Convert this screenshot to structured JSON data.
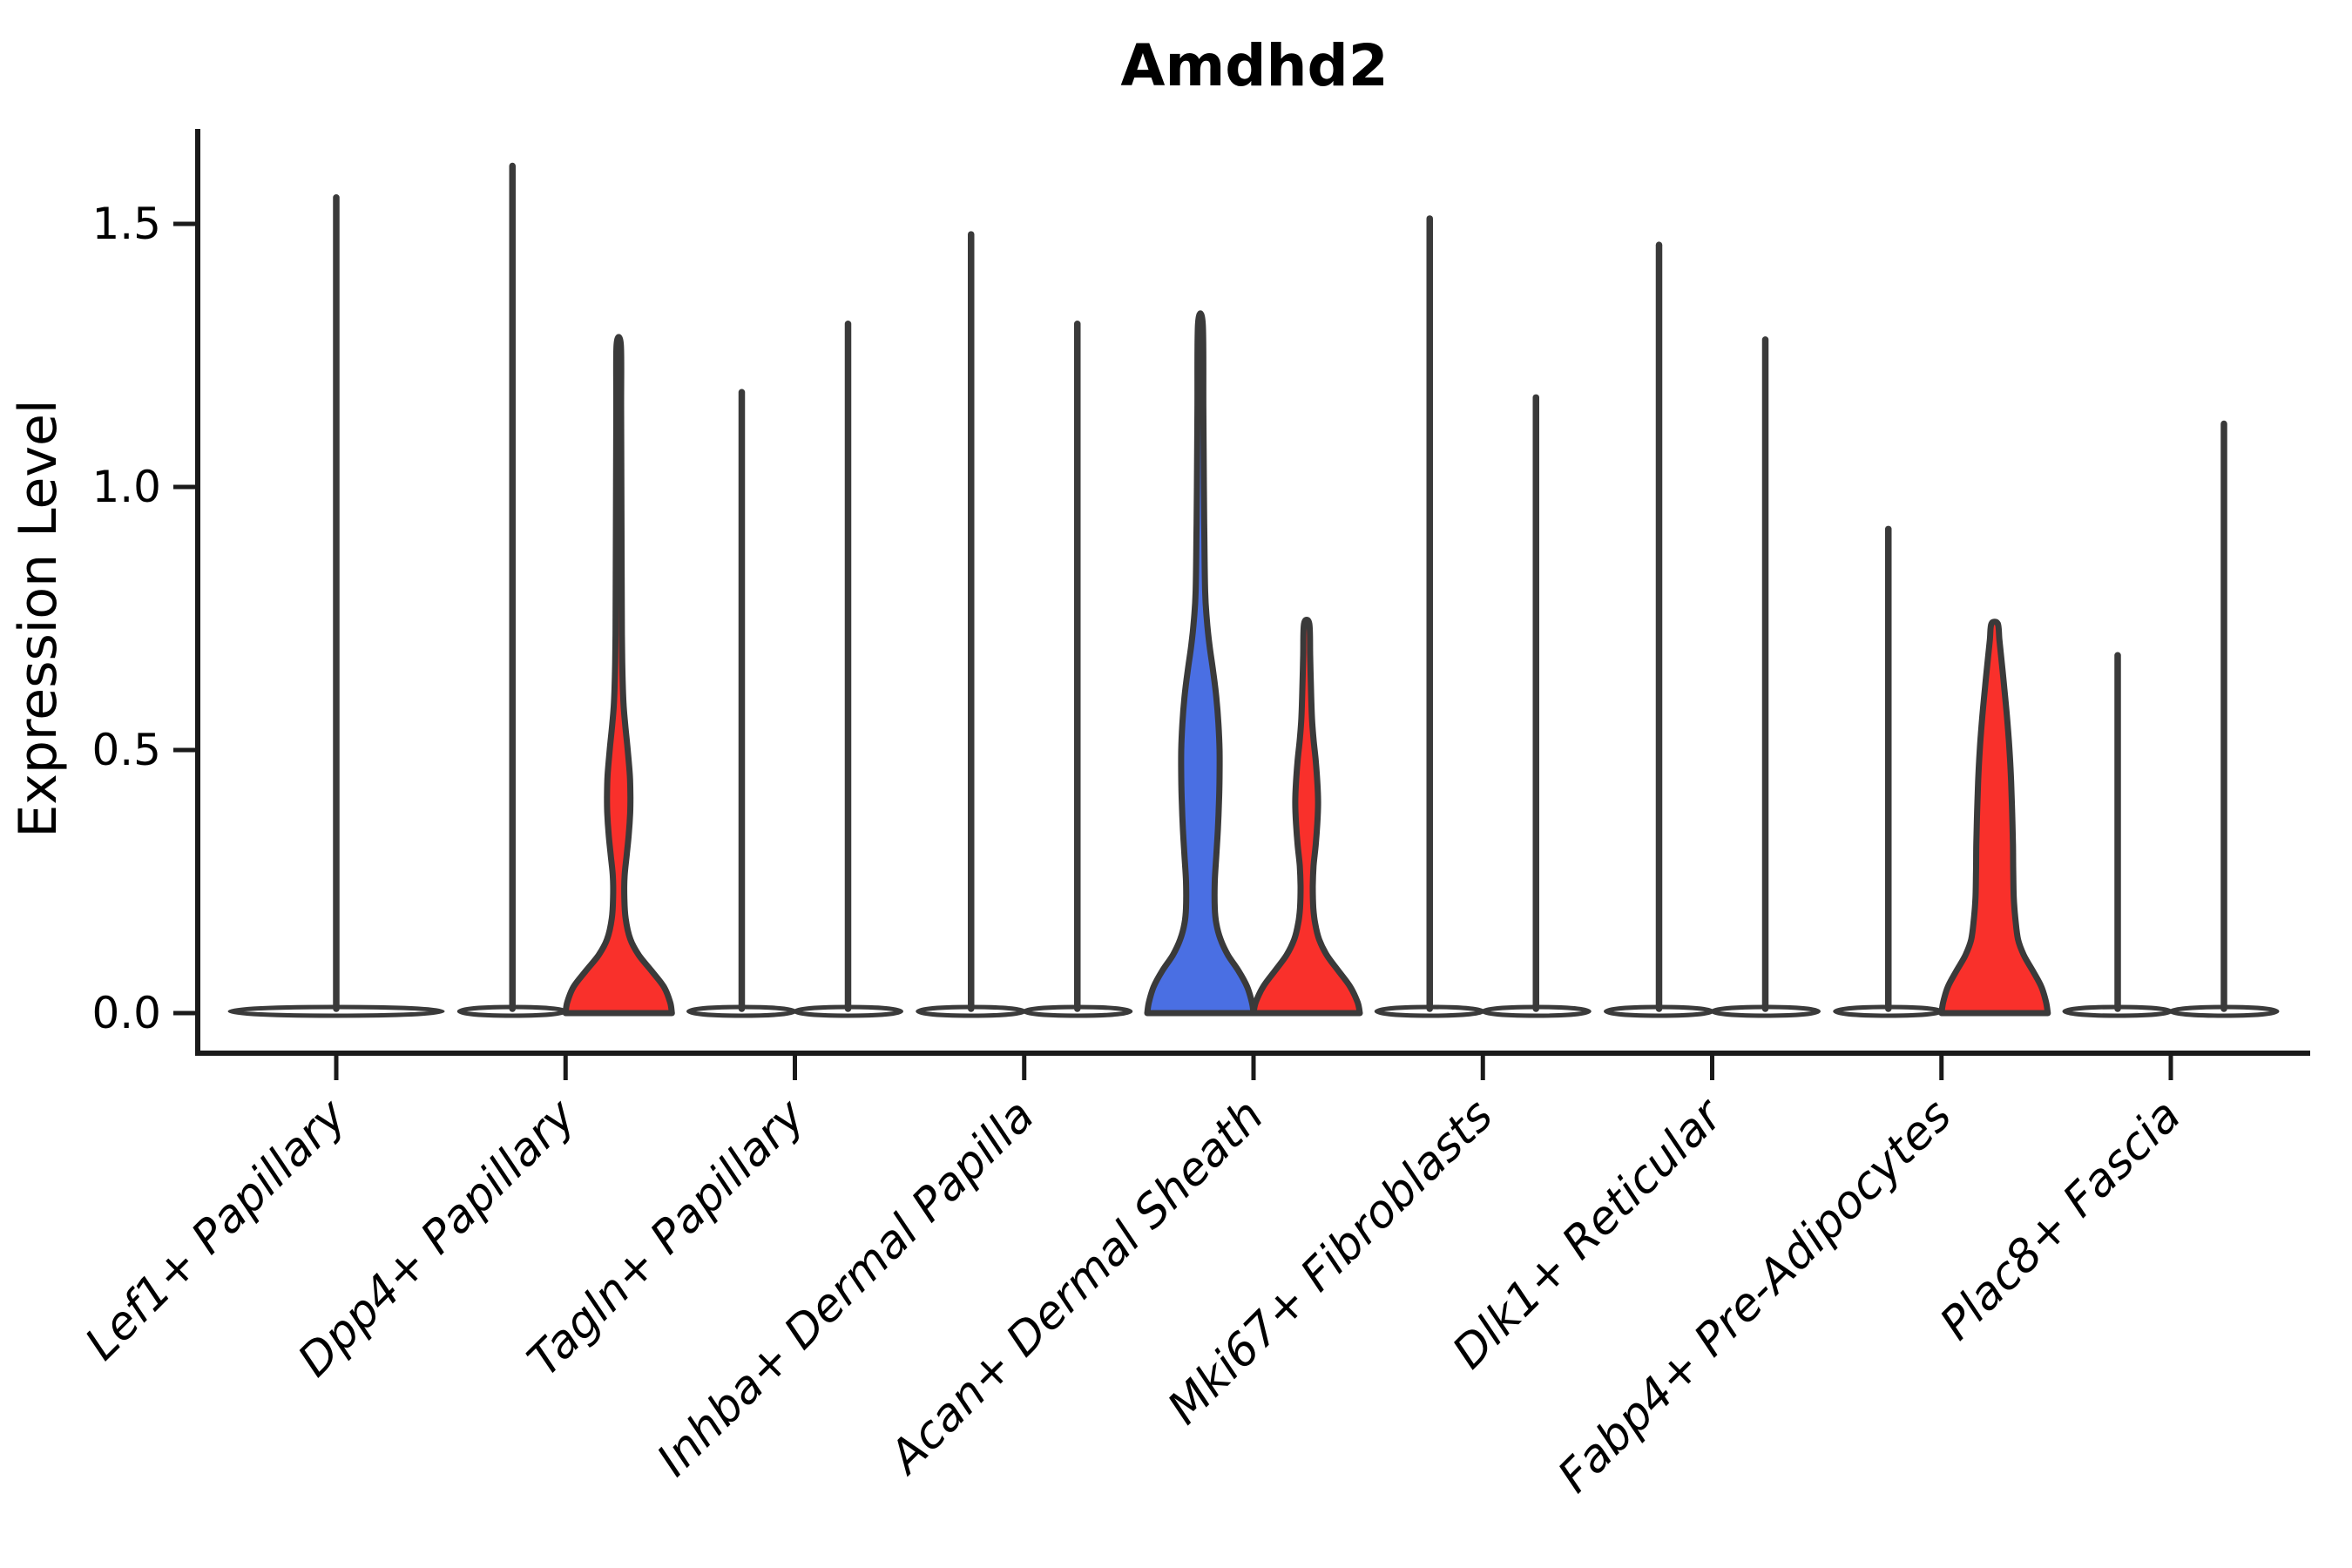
{
  "chart_data": {
    "type": "violin",
    "title": "Amdhd2",
    "ylabel": "Expression Level",
    "xlabel": "",
    "ytick_labels": [
      "0.0",
      "0.5",
      "1.0",
      "1.5"
    ],
    "ytick_values": [
      0,
      0.5,
      1.0,
      1.5
    ],
    "ylim": [
      0,
      1.68
    ],
    "grid": false,
    "legend": "none",
    "x_labels_rotation_deg": 45,
    "colors": {
      "fill_red": "#F9302B",
      "fill_blue": "#4A6FE3",
      "violin_outline": "#3A3A3A",
      "axis": "#1A1A1A",
      "text": "#000000",
      "background": "#FFFFFF"
    },
    "categories": [
      "Lef1+ Papillary",
      "Dpp4+ Papillary",
      "Tagln+ Papillary",
      "Inhba+ Dermal Papilla",
      "Acan+ Dermal Sheath",
      "Mki67+ Fibroblasts",
      "Dlk1+ Reticular",
      "Fabp4+ Pre-Adipocytes",
      "Plac8+ Fascia"
    ],
    "groups": [
      {
        "category": "Lef1+ Papillary",
        "violins": [
          {
            "slot": "center",
            "kind": "spike",
            "fill": "none",
            "max": 1.55
          }
        ]
      },
      {
        "category": "Dpp4+ Papillary",
        "violins": [
          {
            "slot": "left",
            "kind": "spike",
            "fill": "none",
            "max": 1.61
          },
          {
            "slot": "right",
            "kind": "density",
            "fill": "red",
            "max": 1.27,
            "profile": [
              [
                0,
                1
              ],
              [
                0.02,
                0.97
              ],
              [
                0.05,
                0.85
              ],
              [
                0.08,
                0.62
              ],
              [
                0.11,
                0.38
              ],
              [
                0.14,
                0.22
              ],
              [
                0.18,
                0.13
              ],
              [
                0.22,
                0.105
              ],
              [
                0.26,
                0.11
              ],
              [
                0.3,
                0.15
              ],
              [
                0.34,
                0.19
              ],
              [
                0.38,
                0.215
              ],
              [
                0.41,
                0.22
              ],
              [
                0.45,
                0.21
              ],
              [
                0.5,
                0.17
              ],
              [
                0.55,
                0.12
              ],
              [
                0.59,
                0.09
              ],
              [
                0.65,
                0.07
              ],
              [
                0.72,
                0.06
              ],
              [
                0.85,
                0.055
              ],
              [
                1.0,
                0.05
              ],
              [
                1.15,
                0.045
              ],
              [
                1.27,
                0.04
              ]
            ]
          }
        ]
      },
      {
        "category": "Tagln+ Papillary",
        "violins": [
          {
            "slot": "left",
            "kind": "spike",
            "fill": "none",
            "max": 1.18
          },
          {
            "slot": "right",
            "kind": "spike",
            "fill": "none",
            "max": 1.31
          }
        ]
      },
      {
        "category": "Inhba+ Dermal Papilla",
        "violins": [
          {
            "slot": "left",
            "kind": "spike",
            "fill": "none",
            "max": 1.48
          },
          {
            "slot": "right",
            "kind": "spike",
            "fill": "none",
            "max": 1.31
          }
        ]
      },
      {
        "category": "Acan+ Dermal Sheath",
        "violins": [
          {
            "slot": "left",
            "kind": "density",
            "fill": "blue",
            "max": 1.31,
            "profile": [
              [
                0,
                1
              ],
              [
                0.02,
                0.97
              ],
              [
                0.05,
                0.88
              ],
              [
                0.08,
                0.72
              ],
              [
                0.11,
                0.52
              ],
              [
                0.14,
                0.38
              ],
              [
                0.17,
                0.3
              ],
              [
                0.2,
                0.27
              ],
              [
                0.25,
                0.27
              ],
              [
                0.3,
                0.3
              ],
              [
                0.35,
                0.33
              ],
              [
                0.4,
                0.35
              ],
              [
                0.45,
                0.36
              ],
              [
                0.5,
                0.36
              ],
              [
                0.55,
                0.34
              ],
              [
                0.6,
                0.3
              ],
              [
                0.65,
                0.24
              ],
              [
                0.7,
                0.17
              ],
              [
                0.75,
                0.12
              ],
              [
                0.8,
                0.09
              ],
              [
                0.9,
                0.075
              ],
              [
                1.0,
                0.065
              ],
              [
                1.15,
                0.055
              ],
              [
                1.31,
                0.045
              ]
            ]
          },
          {
            "slot": "right",
            "kind": "density",
            "fill": "red",
            "max": 0.74,
            "profile": [
              [
                0,
                1
              ],
              [
                0.02,
                0.96
              ],
              [
                0.05,
                0.82
              ],
              [
                0.08,
                0.6
              ],
              [
                0.11,
                0.38
              ],
              [
                0.14,
                0.235
              ],
              [
                0.17,
                0.16
              ],
              [
                0.2,
                0.125
              ],
              [
                0.24,
                0.115
              ],
              [
                0.28,
                0.13
              ],
              [
                0.32,
                0.17
              ],
              [
                0.36,
                0.2
              ],
              [
                0.4,
                0.215
              ],
              [
                0.44,
                0.2
              ],
              [
                0.48,
                0.17
              ],
              [
                0.52,
                0.13
              ],
              [
                0.56,
                0.1
              ],
              [
                0.62,
                0.08
              ],
              [
                0.68,
                0.065
              ],
              [
                0.74,
                0.05
              ]
            ]
          }
        ]
      },
      {
        "category": "Mki67+ Fibroblasts",
        "violins": [
          {
            "slot": "left",
            "kind": "spike",
            "fill": "none",
            "max": 1.51
          },
          {
            "slot": "right",
            "kind": "spike",
            "fill": "none",
            "max": 1.17
          }
        ]
      },
      {
        "category": "Dlk1+ Reticular",
        "violins": [
          {
            "slot": "left",
            "kind": "spike",
            "fill": "none",
            "max": 1.46
          },
          {
            "slot": "right",
            "kind": "spike",
            "fill": "none",
            "max": 1.28
          }
        ]
      },
      {
        "category": "Fabp4+ Pre-Adipocytes",
        "violins": [
          {
            "slot": "left",
            "kind": "spike",
            "fill": "none",
            "max": 0.92
          },
          {
            "slot": "right",
            "kind": "density",
            "fill": "red",
            "max": 0.74,
            "profile": [
              [
                0,
                1
              ],
              [
                0.02,
                0.97
              ],
              [
                0.05,
                0.88
              ],
              [
                0.08,
                0.72
              ],
              [
                0.11,
                0.55
              ],
              [
                0.14,
                0.44
              ],
              [
                0.18,
                0.39
              ],
              [
                0.22,
                0.36
              ],
              [
                0.27,
                0.35
              ],
              [
                0.32,
                0.345
              ],
              [
                0.38,
                0.33
              ],
              [
                0.44,
                0.31
              ],
              [
                0.5,
                0.28
              ],
              [
                0.56,
                0.235
              ],
              [
                0.62,
                0.18
              ],
              [
                0.67,
                0.13
              ],
              [
                0.71,
                0.09
              ],
              [
                0.74,
                0.06
              ]
            ]
          }
        ]
      },
      {
        "category": "Plac8+ Fascia",
        "violins": [
          {
            "slot": "left",
            "kind": "spike",
            "fill": "none",
            "max": 0.68
          },
          {
            "slot": "right",
            "kind": "spike",
            "fill": "none",
            "max": 1.12
          }
        ]
      }
    ]
  }
}
